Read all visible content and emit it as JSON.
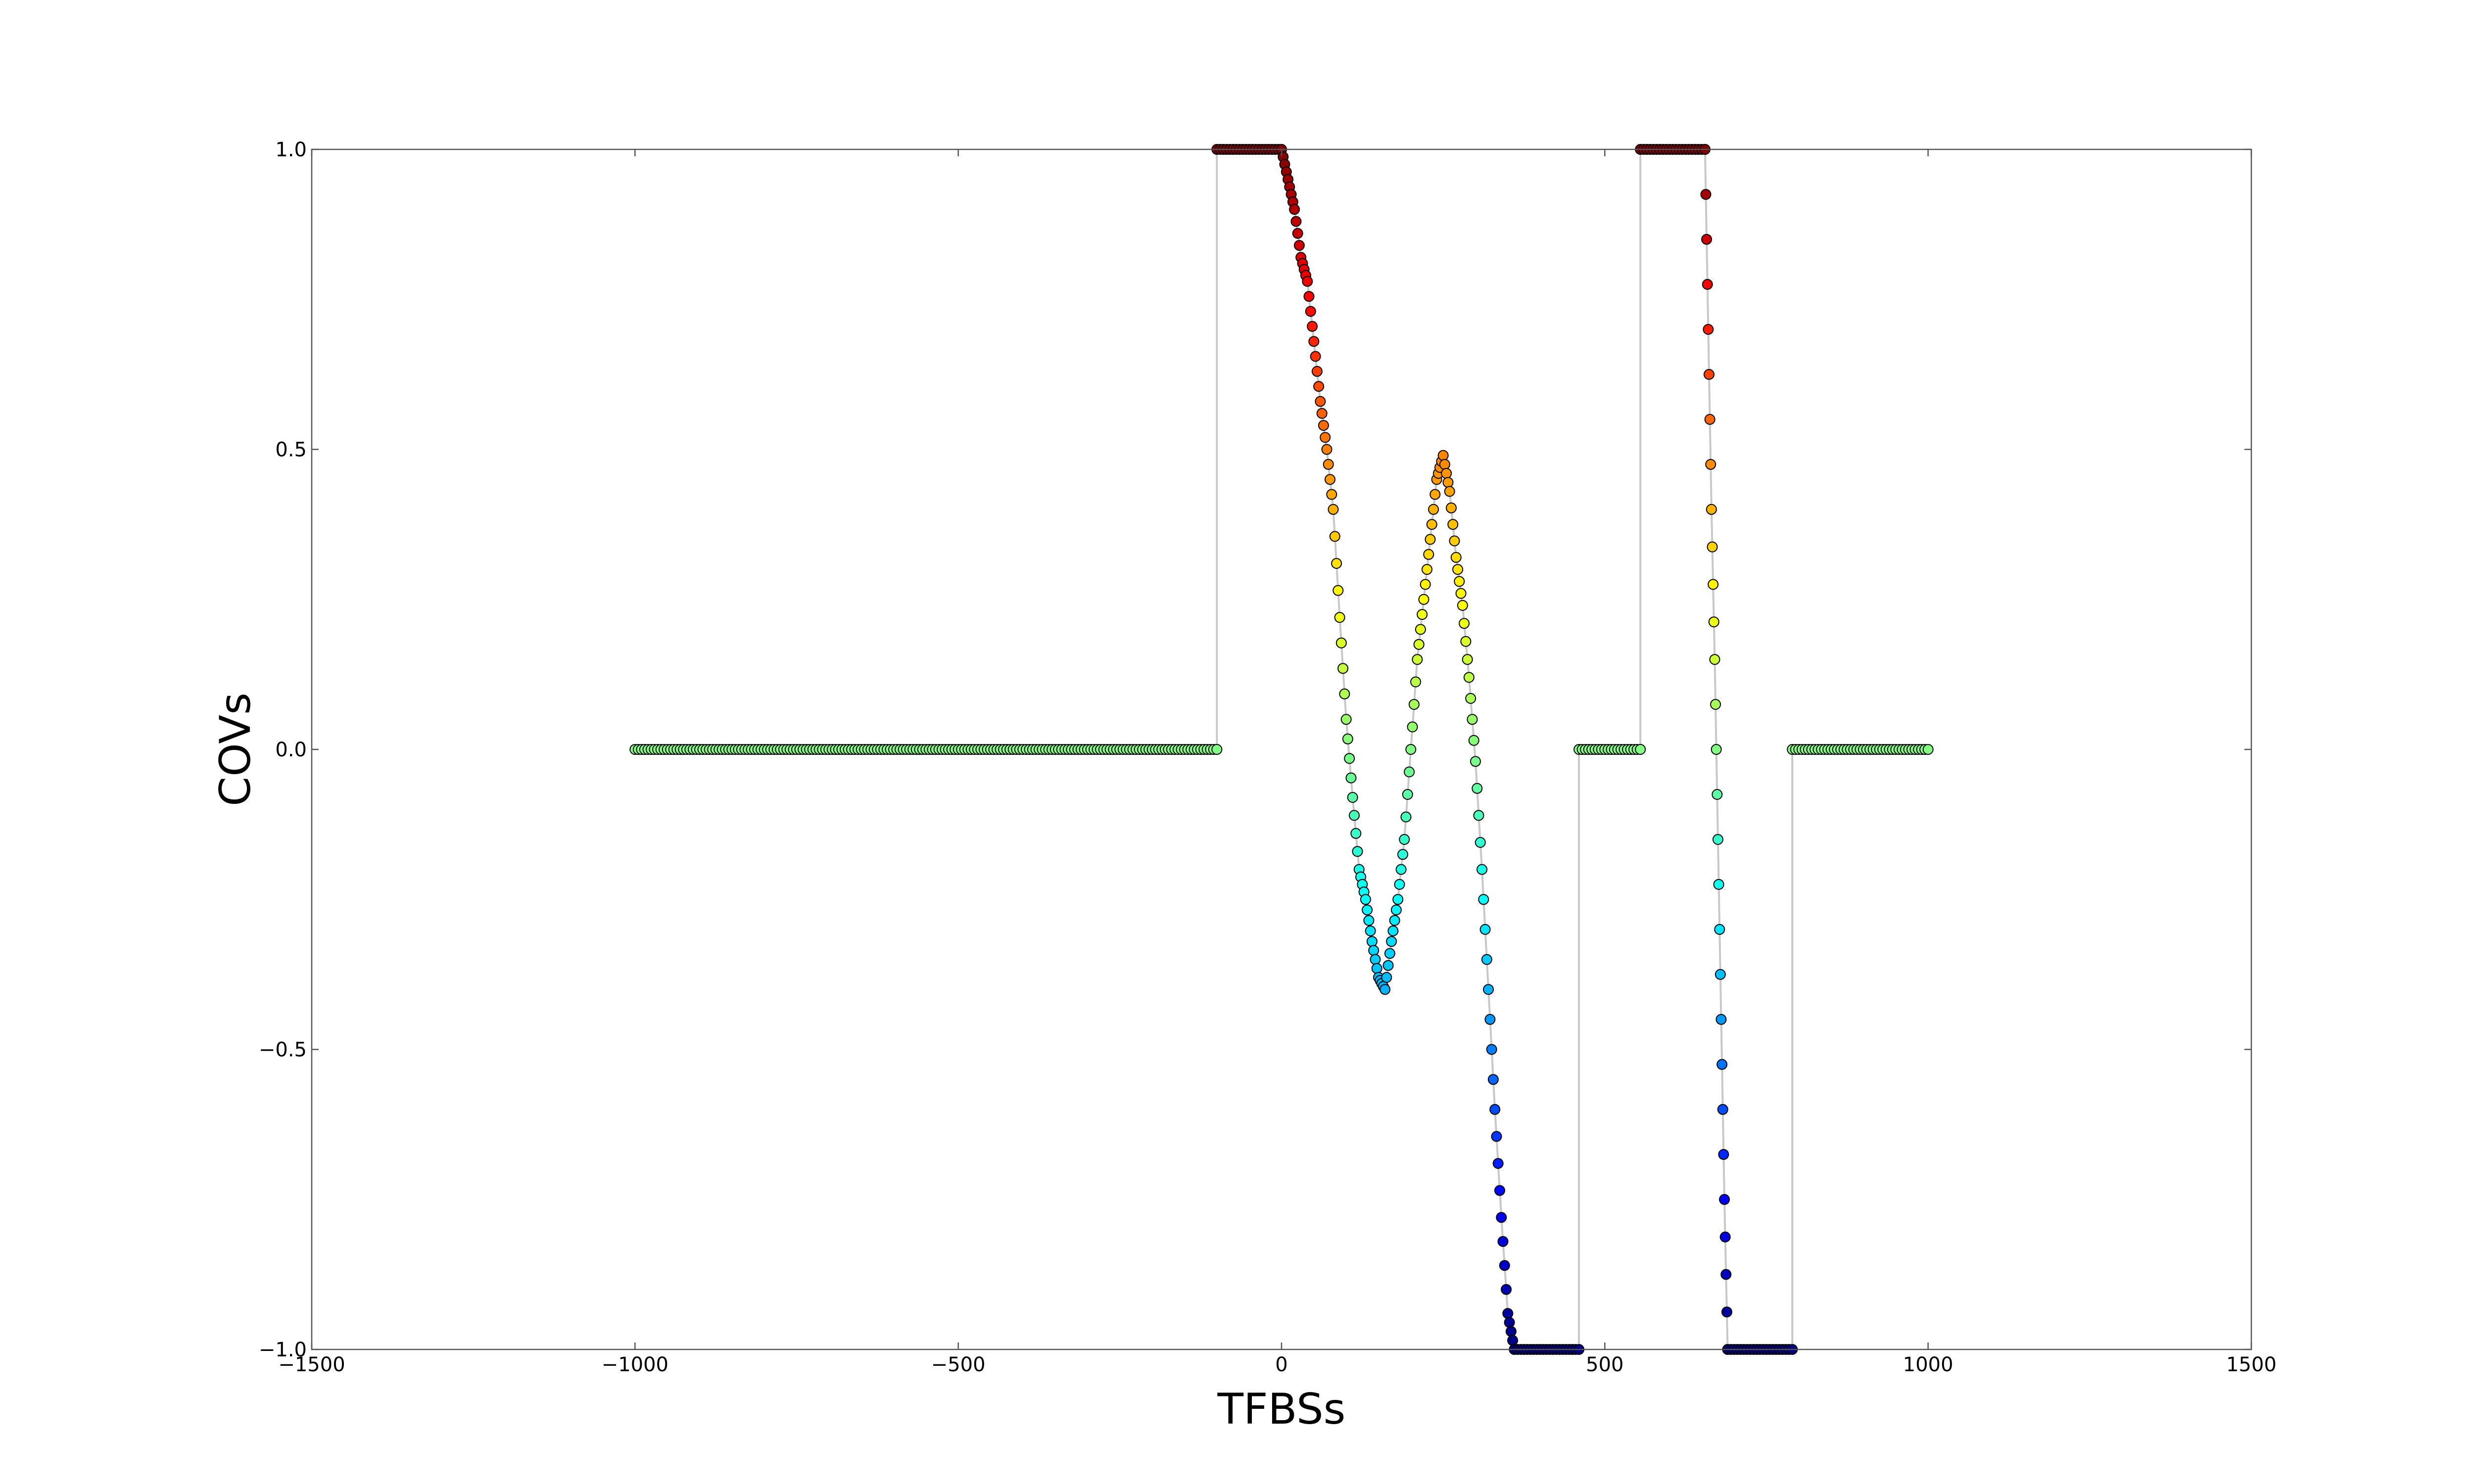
{
  "chart_data": {
    "type": "scatter",
    "title": "",
    "xlabel": "TFBSs",
    "ylabel": "COVs",
    "xlim": [
      -1500,
      1500
    ],
    "ylim": [
      -1.0,
      1.0
    ],
    "xticks": [
      -1500,
      -1000,
      -500,
      0,
      500,
      1000,
      1500
    ],
    "xtick_labels": [
      "−1500",
      "−1000",
      "−500",
      "0",
      "500",
      "1000",
      "1500"
    ],
    "yticks": [
      -1.0,
      -0.5,
      0.0,
      0.5,
      1.0
    ],
    "ytick_labels": [
      "−1.0",
      "−0.5",
      "0.0",
      "0.5",
      "1.0"
    ],
    "grid": false,
    "legend": "none",
    "colormap": "jet (point color follows COVs value)",
    "line_color": "#c8c8c8",
    "marker_edge_color": "#000000",
    "series": [
      {
        "segments": [
          {
            "x_range": [
              -1000,
              -100
            ],
            "y": 0.0
          },
          {
            "x_range": [
              -100,
              0
            ],
            "y": 1.0
          },
          {
            "x": [
              0,
              10,
              20,
              30,
              40,
              50,
              60,
              70,
              80,
              90,
              100,
              110,
              120,
              130,
              140,
              150,
              160,
              170,
              180,
              190,
              200,
              210,
              220,
              230,
              240,
              250,
              260,
              270,
              280,
              290,
              300,
              310,
              320,
              330,
              340,
              350,
              360
            ],
            "y": [
              1.0,
              0.95,
              0.9,
              0.82,
              0.78,
              0.68,
              0.58,
              0.5,
              0.4,
              0.22,
              0.05,
              -0.08,
              -0.2,
              -0.25,
              -0.32,
              -0.38,
              -0.4,
              -0.32,
              -0.25,
              -0.15,
              0.0,
              0.15,
              0.25,
              0.35,
              0.45,
              0.49,
              0.43,
              0.32,
              0.24,
              0.12,
              -0.02,
              -0.2,
              -0.4,
              -0.6,
              -0.78,
              -0.94,
              -1.0
            ]
          },
          {
            "x_range": [
              360,
              460
            ],
            "y": -1.0
          },
          {
            "x_range": [
              460,
              555
            ],
            "y": 0.0
          },
          {
            "x_range": [
              555,
              655
            ],
            "y": 1.0
          },
          {
            "x": [
              655,
              660,
              665,
              670,
              675,
              680,
              685,
              690
            ],
            "y": [
              1.0,
              0.7,
              0.4,
              0.15,
              -0.15,
              -0.45,
              -0.75,
              -1.0
            ]
          },
          {
            "x_range": [
              690,
              790
            ],
            "y": -1.0
          },
          {
            "x_range": [
              790,
              1000
            ],
            "y": 0.0
          }
        ]
      }
    ]
  }
}
